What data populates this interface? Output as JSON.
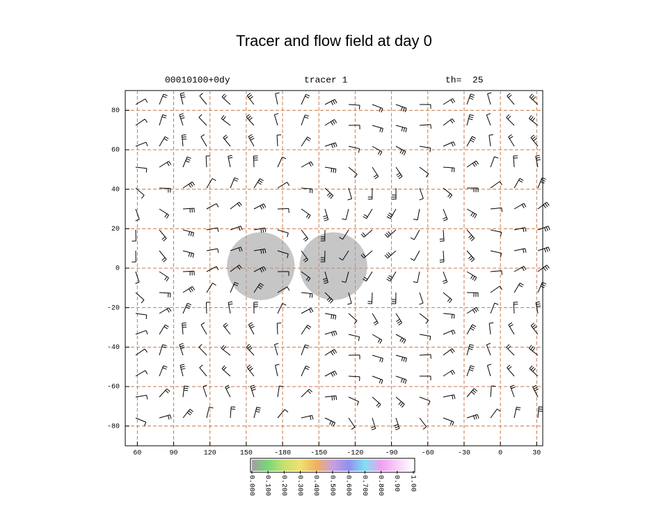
{
  "chart_data": {
    "type": "map",
    "title": "Tracer and flow field at day 0",
    "header": {
      "date": "00010100+0dy",
      "field": "tracer 1",
      "level": "th=  25"
    },
    "xlim": [
      50,
      395
    ],
    "xticks": [
      60,
      90,
      120,
      150,
      {
        "value": 180,
        "label": "-180"
      },
      {
        "value": 210,
        "label": "-150"
      },
      {
        "value": 240,
        "label": "-120"
      },
      {
        "value": 270,
        "label": "-90"
      },
      {
        "value": 300,
        "label": "-60"
      },
      {
        "value": 330,
        "label": "-30"
      },
      {
        "value": 360,
        "label": "0"
      },
      {
        "value": 390,
        "label": "30"
      }
    ],
    "ylim": [
      -90,
      90
    ],
    "yticks": [
      80,
      60,
      40,
      20,
      0,
      -20,
      -40,
      -60,
      -80
    ],
    "grid": true,
    "tracer": [
      {
        "lon": 162,
        "lat": 1,
        "radius": 28
      },
      {
        "lon": 222,
        "lat": 1,
        "radius": 28
      }
    ],
    "colorbar": {
      "lim": [
        0,
        1
      ],
      "ticks": [
        {
          "value": 0,
          "label": "0.000"
        },
        {
          "value": 0.1,
          "label": "0.100"
        },
        {
          "value": 0.2,
          "label": "0.200"
        },
        {
          "value": 0.3,
          "label": "0.300"
        },
        {
          "value": 0.4,
          "label": "0.400"
        },
        {
          "value": 0.5,
          "label": "0.500"
        },
        {
          "value": 0.6,
          "label": "0.600"
        },
        {
          "value": 0.7,
          "label": "0.700"
        },
        {
          "value": 0.8,
          "label": "0.800"
        },
        {
          "value": 0.9,
          "label": "0.90"
        },
        {
          "value": 1,
          "label": "1.00"
        }
      ],
      "colors": [
        "#a0a0a0",
        "#78d878",
        "#c8e070",
        "#f0e070",
        "#f0b060",
        "#c8a0e0",
        "#9090f0",
        "#80e0f0",
        "#f0a0f0",
        "#f8d0f8",
        "#ffffff"
      ]
    }
  }
}
